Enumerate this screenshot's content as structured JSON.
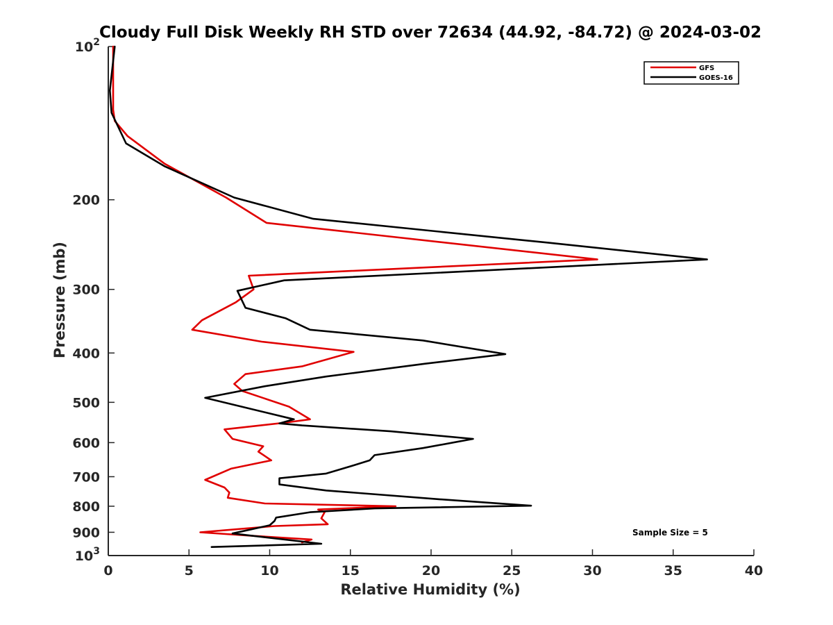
{
  "chart_data": {
    "type": "line",
    "title": "Cloudy Full Disk Weekly RH STD over 72634 (44.92, -84.72) @ 2024-03-02",
    "xlabel": "Relative Humidity (%)",
    "ylabel": "Pressure (mb)",
    "xlim": [
      0,
      40
    ],
    "ylim": [
      100,
      1000
    ],
    "y_scale": "log",
    "y_reversed": true,
    "x_ticks": [
      "0",
      "5",
      "10",
      "15",
      "20",
      "25",
      "30",
      "35",
      "40"
    ],
    "y_ticks": [
      {
        "value": 100,
        "base": "10",
        "exp": "2"
      },
      {
        "value": 200,
        "label": "200"
      },
      {
        "value": 300,
        "label": "300"
      },
      {
        "value": 400,
        "label": "400"
      },
      {
        "value": 500,
        "label": "500"
      },
      {
        "value": 600,
        "label": "600"
      },
      {
        "value": 700,
        "label": "700"
      },
      {
        "value": 800,
        "label": "800"
      },
      {
        "value": 900,
        "label": "900"
      },
      {
        "value": 1000,
        "base": "10",
        "exp": "3"
      }
    ],
    "legend_position": "top-right",
    "grid": false,
    "annotation": "Sample Size = 5",
    "series": [
      {
        "name": "GFS",
        "color": "#e00000",
        "points": [
          [
            0.3,
            100
          ],
          [
            0.3,
            115
          ],
          [
            0.3,
            133
          ],
          [
            0.4,
            140
          ],
          [
            1.2,
            150
          ],
          [
            3.5,
            170
          ],
          [
            7.3,
            198
          ],
          [
            9.8,
            222
          ],
          [
            30.3,
            262
          ],
          [
            8.7,
            282
          ],
          [
            9.0,
            300
          ],
          [
            7.9,
            318
          ],
          [
            5.8,
            345
          ],
          [
            5.2,
            360
          ],
          [
            9.5,
            380
          ],
          [
            15.2,
            398
          ],
          [
            12.0,
            425
          ],
          [
            8.5,
            440
          ],
          [
            7.8,
            460
          ],
          [
            8.3,
            475
          ],
          [
            11.2,
            510
          ],
          [
            12.5,
            540
          ],
          [
            11.0,
            548
          ],
          [
            7.2,
            565
          ],
          [
            7.7,
            590
          ],
          [
            9.6,
            610
          ],
          [
            9.3,
            625
          ],
          [
            10.1,
            650
          ],
          [
            7.6,
            675
          ],
          [
            6.0,
            710
          ],
          [
            7.2,
            735
          ],
          [
            7.5,
            752
          ],
          [
            7.4,
            770
          ],
          [
            9.7,
            790
          ],
          [
            17.8,
            800
          ],
          [
            13.0,
            812
          ],
          [
            13.4,
            822
          ],
          [
            13.2,
            845
          ],
          [
            13.6,
            868
          ],
          [
            10.3,
            875
          ],
          [
            5.7,
            900
          ],
          [
            9.0,
            915
          ],
          [
            12.6,
            930
          ],
          [
            12.0,
            942
          ]
        ]
      },
      {
        "name": "GOES-16",
        "color": "#000000",
        "points": [
          [
            0.4,
            100
          ],
          [
            0.1,
            122
          ],
          [
            0.2,
            135
          ],
          [
            1.1,
            155
          ],
          [
            3.5,
            172
          ],
          [
            7.8,
            198
          ],
          [
            12.7,
            218
          ],
          [
            27.3,
            243
          ],
          [
            37.1,
            262
          ],
          [
            10.9,
            288
          ],
          [
            8.0,
            302
          ],
          [
            8.5,
            326
          ],
          [
            11.0,
            342
          ],
          [
            12.5,
            360
          ],
          [
            19.5,
            378
          ],
          [
            24.6,
            402
          ],
          [
            19.6,
            420
          ],
          [
            13.5,
            445
          ],
          [
            9.7,
            465
          ],
          [
            6.0,
            490
          ],
          [
            11.5,
            540
          ],
          [
            10.6,
            550
          ],
          [
            12.0,
            555
          ],
          [
            17.5,
            570
          ],
          [
            22.6,
            590
          ],
          [
            19.5,
            615
          ],
          [
            16.5,
            635
          ],
          [
            16.2,
            650
          ],
          [
            15.2,
            665
          ],
          [
            13.5,
            690
          ],
          [
            10.6,
            705
          ],
          [
            10.6,
            725
          ],
          [
            13.5,
            745
          ],
          [
            20.5,
            775
          ],
          [
            26.2,
            798
          ],
          [
            16.5,
            808
          ],
          [
            12.5,
            822
          ],
          [
            10.4,
            842
          ],
          [
            10.3,
            855
          ],
          [
            10.0,
            872
          ],
          [
            7.7,
            905
          ],
          [
            13.2,
            948
          ],
          [
            6.4,
            962
          ]
        ]
      }
    ]
  }
}
